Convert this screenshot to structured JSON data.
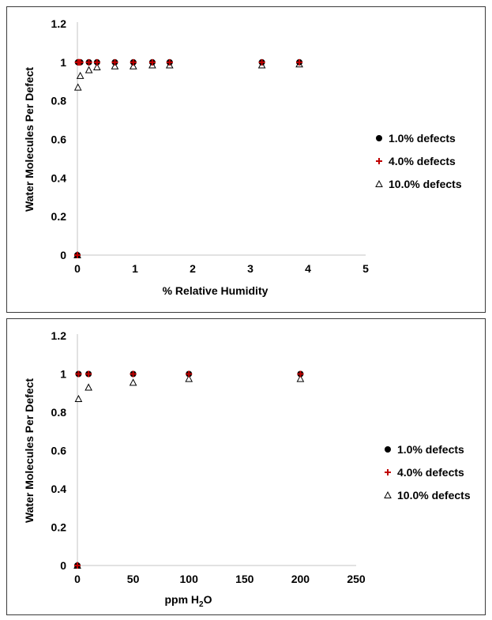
{
  "colors": {
    "series1": "#000000",
    "series2": "#c00000",
    "series3": "#000000",
    "axis": "#d9d9d9"
  },
  "chart_data": [
    {
      "type": "scatter",
      "xlabel": "% Relative Humidity",
      "ylabel": "Water Molecules Per Defect",
      "xlim": [
        0,
        5
      ],
      "ylim": [
        0,
        1.2
      ],
      "xticks": [
        "0",
        "1",
        "2",
        "3",
        "4",
        "5"
      ],
      "yticks": [
        "0",
        "0.2",
        "0.4",
        "0.6",
        "0.8",
        "1",
        "1.2"
      ],
      "grid": false,
      "legend_position": "right",
      "series": [
        {
          "name": "1.0% defects",
          "marker": "circle",
          "x": [
            0,
            0.01,
            0.02,
            0.03,
            0.05,
            0.2,
            0.34,
            0.65,
            0.97,
            1.3,
            1.6,
            3.2,
            3.85
          ],
          "y": [
            0,
            1,
            1,
            1,
            1,
            1,
            1,
            1,
            1,
            1,
            1,
            1,
            1
          ]
        },
        {
          "name": "4.0% defects",
          "marker": "plus",
          "x": [
            0,
            0.01,
            0.02,
            0.03,
            0.05,
            0.2,
            0.34,
            0.65,
            0.97,
            1.3,
            1.6,
            3.2,
            3.85
          ],
          "y": [
            0,
            1,
            1,
            1,
            1,
            1,
            1,
            1,
            1,
            1,
            1,
            1,
            1
          ]
        },
        {
          "name": "10.0% defects",
          "marker": "triangle",
          "x": [
            0,
            0.01,
            0.05,
            0.2,
            0.34,
            0.65,
            0.97,
            1.3,
            1.6,
            3.2,
            3.85
          ],
          "y": [
            0,
            0.87,
            0.93,
            0.96,
            0.975,
            0.98,
            0.98,
            0.985,
            0.985,
            0.985,
            0.99
          ]
        }
      ]
    },
    {
      "type": "scatter",
      "xlabel_main": "ppm H",
      "xlabel_sub": "2",
      "xlabel_tail": "O",
      "ylabel": "Water Molecules Per Defect",
      "xlim": [
        0,
        250
      ],
      "ylim": [
        0,
        1.2
      ],
      "xticks": [
        "0",
        "50",
        "100",
        "150",
        "200",
        "250"
      ],
      "yticks": [
        "0",
        "0.2",
        "0.4",
        "0.6",
        "0.8",
        "1",
        "1.2"
      ],
      "grid": false,
      "legend_position": "right",
      "series": [
        {
          "name": "1.0% defects",
          "marker": "circle",
          "x": [
            0,
            1,
            10,
            50,
            100,
            200
          ],
          "y": [
            0,
            1,
            1,
            1,
            1,
            1
          ]
        },
        {
          "name": "4.0% defects",
          "marker": "plus",
          "x": [
            0,
            1,
            10,
            50,
            100,
            200
          ],
          "y": [
            0,
            1,
            1,
            1,
            1,
            1
          ]
        },
        {
          "name": "10.0% defects",
          "marker": "triangle",
          "x": [
            0,
            1,
            10,
            50,
            100,
            200
          ],
          "y": [
            0,
            0.87,
            0.93,
            0.955,
            0.975,
            0.975
          ]
        }
      ]
    }
  ]
}
